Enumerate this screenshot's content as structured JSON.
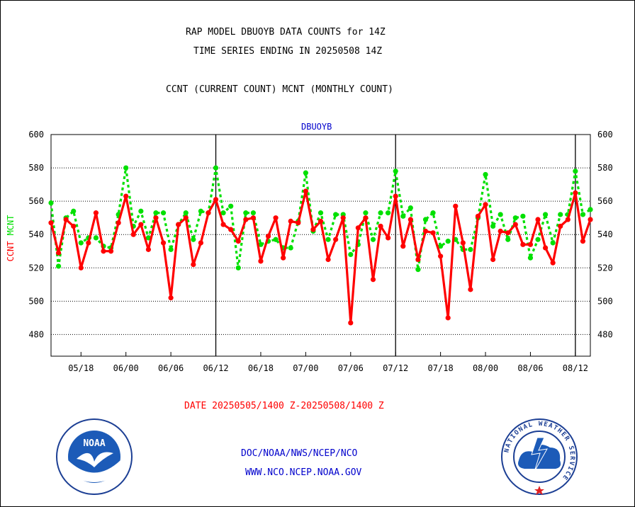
{
  "header": {
    "line1": "RAP MODEL DBUOYB DATA COUNTS for 14Z",
    "line2": "TIME SERIES ENDING IN 20250508 14Z",
    "line3": "CCNT (CURRENT COUNT) MCNT (MONTHLY COUNT)"
  },
  "footer": {
    "date_range": "DATE 20250505/1400 Z-20250508/1400 Z",
    "org": "DOC/NOAA/NWS/NCEP/NCO",
    "url": "WWW.NCO.NCEP.NOAA.GOV"
  },
  "logos": {
    "noaa_text": "NOAA",
    "nws_ring": "NATIONAL WEATHER SERVICE"
  },
  "colors": {
    "ccnt": "#ff0000",
    "mcnt": "#00e000",
    "title": "#0000cc",
    "date_label": "#ff0000"
  },
  "chart_data": {
    "type": "line",
    "title": "DBUOYB",
    "ylabel_left": [
      "CCNT",
      "MCNT"
    ],
    "ylim": [
      467,
      600
    ],
    "yticks": [
      480,
      500,
      520,
      540,
      560,
      580,
      600
    ],
    "xlim": [
      0,
      72
    ],
    "x_tick_labels": [
      "05/18",
      "06/00",
      "06/06",
      "06/12",
      "06/18",
      "07/00",
      "07/06",
      "07/12",
      "07/18",
      "08/00",
      "08/06",
      "08/12"
    ],
    "x_tick_positions": [
      4,
      10,
      16,
      22,
      28,
      34,
      40,
      46,
      52,
      58,
      64,
      70
    ],
    "day_boundaries": [
      22,
      46,
      70
    ],
    "grid": true,
    "series": [
      {
        "name": "CCNT",
        "style": "solid",
        "x": [
          0,
          1,
          2,
          3,
          4,
          5,
          6,
          7,
          8,
          9,
          10,
          11,
          12,
          13,
          14,
          15,
          16,
          17,
          18,
          19,
          20,
          21,
          22,
          23,
          24,
          25,
          26,
          27,
          28,
          29,
          30,
          31,
          32,
          33,
          34,
          35,
          36,
          37,
          38,
          39,
          40,
          41,
          42,
          43,
          44,
          45,
          46,
          47,
          48,
          49,
          50,
          51,
          52,
          53,
          54,
          55,
          56,
          57,
          58,
          59,
          60,
          61,
          62,
          63,
          64,
          65,
          66,
          67,
          68,
          69,
          70,
          71,
          72
        ],
        "values": [
          547,
          529,
          549,
          545,
          520,
          535,
          553,
          530,
          530,
          547,
          563,
          540,
          546,
          531,
          550,
          535,
          502,
          546,
          550,
          522,
          535,
          553,
          561,
          546,
          543,
          536,
          549,
          550,
          524,
          539,
          550,
          526,
          548,
          547,
          566,
          543,
          548,
          525,
          537,
          550,
          487,
          544,
          550,
          513,
          545,
          538,
          563,
          533,
          549,
          525,
          542,
          541,
          527,
          490,
          557,
          535,
          507,
          551,
          558,
          525,
          542,
          541,
          546,
          534,
          534,
          549,
          532,
          523,
          545,
          549,
          565,
          536,
          549
        ]
      },
      {
        "name": "MCNT",
        "style": "dashed",
        "x": [
          0,
          1,
          2,
          3,
          4,
          5,
          6,
          7,
          8,
          9,
          10,
          11,
          12,
          13,
          14,
          15,
          16,
          17,
          18,
          19,
          20,
          21,
          22,
          23,
          24,
          25,
          26,
          27,
          28,
          29,
          30,
          31,
          32,
          33,
          34,
          35,
          36,
          37,
          38,
          39,
          40,
          41,
          42,
          43,
          44,
          45,
          46,
          47,
          48,
          49,
          50,
          51,
          52,
          53,
          54,
          55,
          56,
          57,
          58,
          59,
          60,
          61,
          62,
          63,
          64,
          65,
          66,
          67,
          68,
          69,
          70,
          71,
          72
        ],
        "values": [
          559,
          521,
          550,
          554,
          535,
          538,
          538,
          533,
          532,
          552,
          580,
          545,
          554,
          538,
          553,
          553,
          531,
          546,
          553,
          537,
          554,
          553,
          580,
          553,
          557,
          520,
          553,
          553,
          534,
          536,
          537,
          532,
          532,
          548,
          577,
          542,
          553,
          537,
          552,
          552,
          528,
          534,
          553,
          537,
          553,
          553,
          578,
          551,
          556,
          519,
          549,
          553,
          533,
          536,
          537,
          531,
          531,
          550,
          576,
          545,
          552,
          537,
          550,
          551,
          526,
          537,
          552,
          535,
          552,
          552,
          578,
          552,
          555
        ]
      }
    ]
  }
}
